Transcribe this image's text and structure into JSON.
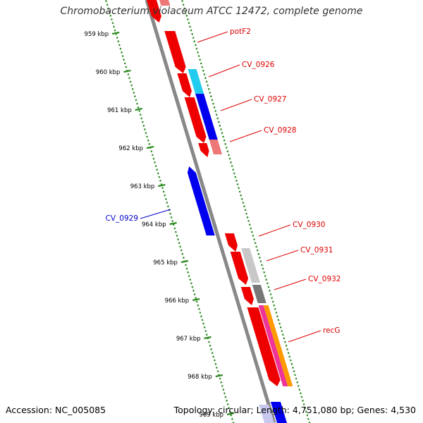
{
  "title": "Chromobacterium violaceum ATCC 12472, complete genome",
  "footer": {
    "accession": "Accession: NC_005085",
    "stats": "Topology: circular; Length: 4,751,080 bp; Genes: 4,530"
  },
  "colors": {
    "backbone": "#888888",
    "tick": "#2e8b22",
    "forward_label": "#dd0000",
    "reverse_label": "#0000cc",
    "tick_label": "#000000"
  },
  "ruler": {
    "ticks": [
      "959 kbp",
      "960 kbp",
      "961 kbp",
      "962 kbp",
      "963 kbp",
      "964 kbp",
      "965 kbp",
      "966 kbp",
      "967 kbp",
      "968 kbp",
      "969 kbp"
    ]
  },
  "gene_labels": [
    {
      "id": "potF2",
      "text": "potF2",
      "strand": "forward"
    },
    {
      "id": "cv0926",
      "text": "CV_0926",
      "strand": "forward"
    },
    {
      "id": "cv0927",
      "text": "CV_0927",
      "strand": "forward"
    },
    {
      "id": "cv0928",
      "text": "CV_0928",
      "strand": "forward"
    },
    {
      "id": "cv0929",
      "text": "CV_0929",
      "strand": "reverse"
    },
    {
      "id": "cv0930",
      "text": "CV_0930",
      "strand": "forward"
    },
    {
      "id": "cv0931",
      "text": "CV_0931",
      "strand": "forward"
    },
    {
      "id": "cv0932",
      "text": "CV_0932",
      "strand": "forward"
    },
    {
      "id": "recg",
      "text": "recG",
      "strand": "forward"
    }
  ],
  "feature_colors": {
    "cds": "#ee0000",
    "cds_light": "#ee7777",
    "cyan": "#22ccee",
    "blue": "#0000ee",
    "pink": "#ee3399",
    "orange": "#ff9900",
    "gray_light": "#c8c8c8",
    "gray_dark": "#777777"
  }
}
